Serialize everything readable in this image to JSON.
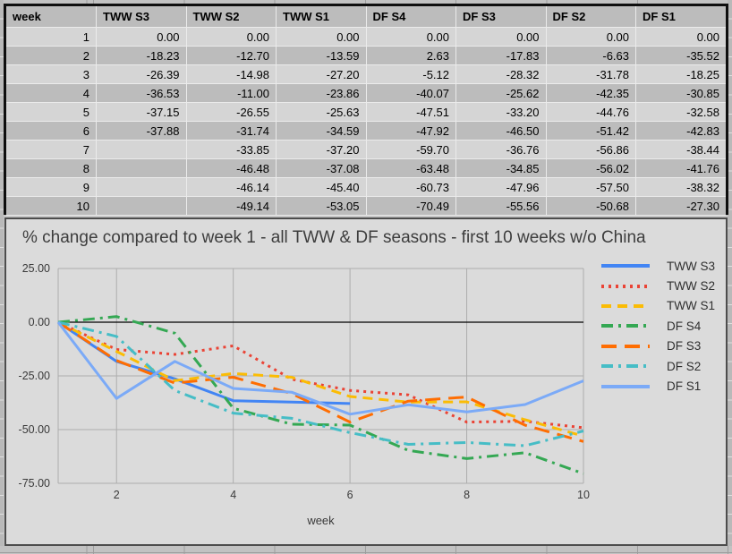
{
  "table": {
    "headers": [
      "week",
      "TWW S3",
      "TWW S2",
      "TWW S1",
      "DF S4",
      "DF S3",
      "DF S2",
      "DF S1"
    ],
    "rows": [
      [
        "1",
        "0.00",
        "0.00",
        "0.00",
        "0.00",
        "0.00",
        "0.00",
        "0.00"
      ],
      [
        "2",
        "-18.23",
        "-12.70",
        "-13.59",
        "2.63",
        "-17.83",
        "-6.63",
        "-35.52"
      ],
      [
        "3",
        "-26.39",
        "-14.98",
        "-27.20",
        "-5.12",
        "-28.32",
        "-31.78",
        "-18.25"
      ],
      [
        "4",
        "-36.53",
        "-11.00",
        "-23.86",
        "-40.07",
        "-25.62",
        "-42.35",
        "-30.85"
      ],
      [
        "5",
        "-37.15",
        "-26.55",
        "-25.63",
        "-47.51",
        "-33.20",
        "-44.76",
        "-32.58"
      ],
      [
        "6",
        "-37.88",
        "-31.74",
        "-34.59",
        "-47.92",
        "-46.50",
        "-51.42",
        "-42.83"
      ],
      [
        "7",
        "",
        "-33.85",
        "-37.20",
        "-59.70",
        "-36.76",
        "-56.86",
        "-38.44"
      ],
      [
        "8",
        "",
        "-46.48",
        "-37.08",
        "-63.48",
        "-34.85",
        "-56.02",
        "-41.76"
      ],
      [
        "9",
        "",
        "-46.14",
        "-45.40",
        "-60.73",
        "-47.96",
        "-57.50",
        "-38.32"
      ],
      [
        "10",
        "",
        "-49.14",
        "-53.05",
        "-70.49",
        "-55.56",
        "-50.68",
        "-27.30"
      ]
    ]
  },
  "chart_data": {
    "type": "line",
    "title": "% change compared to week 1 - all TWW & DF seasons - first 10 weeks w/o China",
    "xlabel": "week",
    "ylabel": "",
    "x": [
      1,
      2,
      3,
      4,
      5,
      6,
      7,
      8,
      9,
      10
    ],
    "xlim": [
      1,
      10
    ],
    "ylim": [
      -75,
      25
    ],
    "x_ticks": [
      {
        "value": 2,
        "label": "2"
      },
      {
        "value": 4,
        "label": "4"
      },
      {
        "value": 6,
        "label": "6"
      },
      {
        "value": 8,
        "label": "8"
      },
      {
        "value": 10,
        "label": "10"
      }
    ],
    "y_ticks": [
      {
        "value": 25,
        "label": "25.00"
      },
      {
        "value": 0,
        "label": "0.00"
      },
      {
        "value": -25,
        "label": "-25.00"
      },
      {
        "value": -50,
        "label": "-50.00"
      },
      {
        "value": -75,
        "label": "-75.00"
      }
    ],
    "grid": true,
    "legend_position": "right",
    "gridline_color": "#adadad",
    "zero_line_color": "#000000",
    "series": [
      {
        "name": "TWW S3",
        "color": "#4285F4",
        "dash": "solid",
        "values": [
          0,
          -18.23,
          -26.39,
          -36.53,
          -37.15,
          -37.88,
          null,
          null,
          null,
          null
        ]
      },
      {
        "name": "TWW S2",
        "color": "#EA4335",
        "dash": "dotted",
        "values": [
          0,
          -12.7,
          -14.98,
          -11.0,
          -26.55,
          -31.74,
          -33.85,
          -46.48,
          -46.14,
          -49.14
        ]
      },
      {
        "name": "TWW S1",
        "color": "#FBBC04",
        "dash": "dashed",
        "values": [
          0,
          -13.59,
          -27.2,
          -23.86,
          -25.63,
          -34.59,
          -37.2,
          -37.08,
          -45.4,
          -53.05
        ]
      },
      {
        "name": "DF S4",
        "color": "#34A853",
        "dash": "dashdot",
        "values": [
          0,
          2.63,
          -5.12,
          -40.07,
          -47.51,
          -47.92,
          -59.7,
          -63.48,
          -60.73,
          -70.49
        ]
      },
      {
        "name": "DF S3",
        "color": "#FF6D01",
        "dash": "longdash",
        "values": [
          0,
          -17.83,
          -28.32,
          -25.62,
          -33.2,
          -46.5,
          -36.76,
          -34.85,
          -47.96,
          -55.56
        ]
      },
      {
        "name": "DF S2",
        "color": "#46BDC6",
        "dash": "dashdot",
        "values": [
          0,
          -6.63,
          -31.78,
          -42.35,
          -44.76,
          -51.42,
          -56.86,
          -56.02,
          -57.5,
          -50.68
        ]
      },
      {
        "name": "DF S1",
        "color": "#7BAAF7",
        "dash": "solid",
        "values": [
          0,
          -35.52,
          -18.25,
          -30.85,
          -32.58,
          -42.83,
          -38.44,
          -41.76,
          -38.32,
          -27.3
        ]
      }
    ]
  }
}
